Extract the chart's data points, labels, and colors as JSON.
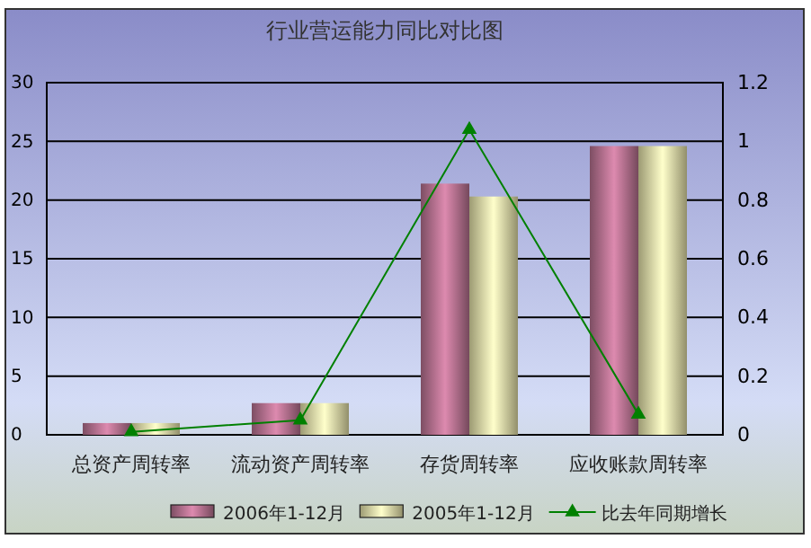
{
  "chart_data": {
    "type": "bar",
    "title": "行业营运能力同比对比图",
    "categories": [
      "总资产周转率",
      "流动资产周转率",
      "存货周转率",
      "应收账款周转率"
    ],
    "series": [
      {
        "name": "2006年1-12月",
        "color": "#c07898",
        "values": [
          1.0,
          2.7,
          21.4,
          24.6
        ]
      },
      {
        "name": "2005年1-12月",
        "color": "#f0ecb0",
        "values": [
          1.0,
          2.7,
          20.3,
          24.6
        ]
      },
      {
        "name": "比去年同期增长",
        "type": "line",
        "axis": "y2",
        "color": "#008000",
        "marker": "triangle",
        "values": [
          0.01,
          0.05,
          1.04,
          0.07
        ]
      }
    ],
    "ylim": [
      0,
      30
    ],
    "yticks": [
      0,
      5,
      10,
      15,
      20,
      25,
      30
    ],
    "y2lim": [
      0,
      1.2
    ],
    "y2ticks": [
      0,
      0.2,
      0.4,
      0.6,
      0.8,
      1,
      1.2
    ],
    "grid": "y",
    "legend": "bottom"
  }
}
